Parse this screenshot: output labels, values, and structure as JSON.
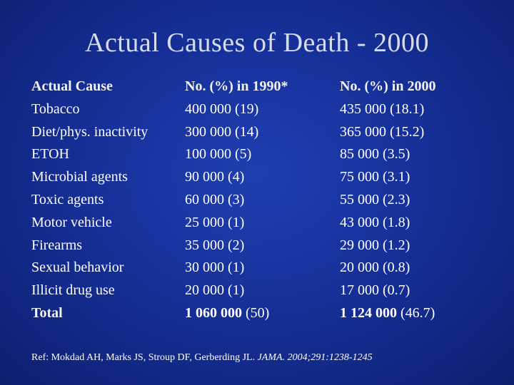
{
  "title": "Actual Causes of Death - 2000",
  "headers": {
    "cause": "Actual Cause",
    "y1990": "No. (%) in 1990*",
    "y2000": "No. (%) in 2000"
  },
  "rows": [
    {
      "cause": "Tobacco",
      "y1990": "400 000 (19)",
      "y2000": "435 000 (18.1)"
    },
    {
      "cause": "Diet/phys. inactivity",
      "y1990": "300 000 (14)",
      "y2000": "365 000 (15.2)"
    },
    {
      "cause": "ETOH",
      "y1990": "100 000 (5)",
      "y2000": "85 000 (3.5)"
    },
    {
      "cause": "Microbial agents",
      "y1990": "90 000 (4)",
      "y2000": "75 000 (3.1)"
    },
    {
      "cause": "Toxic agents",
      "y1990": "60 000 (3)",
      "y2000": "55 000 (2.3)"
    },
    {
      "cause": "Motor vehicle",
      "y1990": "25 000 (1)",
      "y2000": "43 000 (1.8)"
    },
    {
      "cause": "Firearms",
      "y1990": "35 000 (2)",
      "y2000": "29 000 (1.2)"
    },
    {
      "cause": "Sexual behavior",
      "y1990": "30 000 (1)",
      "y2000": "20 000 (0.8)"
    },
    {
      "cause": "Illicit drug use",
      "y1990": "20 000 (1)",
      "y2000": "17 000 (0.7)"
    }
  ],
  "total": {
    "label": "Total",
    "y1990_num": "1 060 000",
    "y1990_pct": "(50)",
    "y2000_num": "1 124 000",
    "y2000_pct": "(46.7)"
  },
  "reference": {
    "prefix": "Ref: Mokdad AH, Marks JS, Stroup DF, Gerberding JL.",
    "journal": "JAMA.",
    "citation": "2004;291:1238-1245"
  }
}
